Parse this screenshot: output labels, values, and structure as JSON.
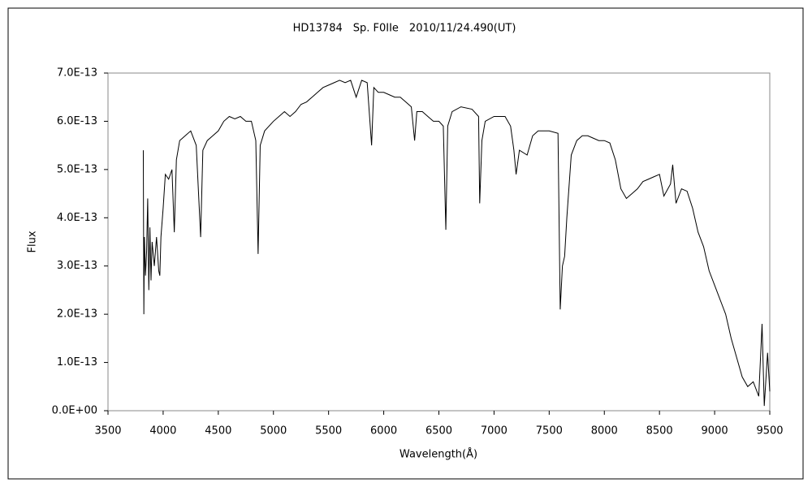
{
  "chart_data": {
    "type": "line",
    "title": "HD13784　Sp. F0IIe　2010/11/24.490(UT)",
    "x_label": "Wavelength(Å)",
    "y_label": "Flux",
    "color": "#000000",
    "x": [
      3820,
      3825,
      3830,
      3840,
      3850,
      3860,
      3870,
      3880,
      3890,
      3900,
      3920,
      3940,
      3960,
      3970,
      3980,
      4000,
      4020,
      4050,
      4080,
      4101,
      4120,
      4150,
      4200,
      4250,
      4300,
      4340,
      4360,
      4400,
      4450,
      4500,
      4550,
      4600,
      4650,
      4700,
      4750,
      4800,
      4840,
      4861,
      4880,
      4920,
      5000,
      5050,
      5100,
      5150,
      5200,
      5250,
      5300,
      5350,
      5400,
      5450,
      5500,
      5550,
      5600,
      5650,
      5700,
      5750,
      5800,
      5850,
      5890,
      5910,
      5950,
      6000,
      6050,
      6100,
      6150,
      6200,
      6250,
      6280,
      6300,
      6350,
      6400,
      6450,
      6500,
      6540,
      6563,
      6580,
      6620,
      6700,
      6800,
      6860,
      6870,
      6890,
      6920,
      7000,
      7100,
      7150,
      7180,
      7200,
      7230,
      7300,
      7350,
      7400,
      7500,
      7580,
      7600,
      7620,
      7640,
      7660,
      7700,
      7750,
      7800,
      7850,
      7900,
      7950,
      8000,
      8050,
      8100,
      8150,
      8200,
      8250,
      8300,
      8350,
      8400,
      8450,
      8500,
      8540,
      8600,
      8620,
      8650,
      8700,
      8750,
      8800,
      8850,
      8900,
      8950,
      9000,
      9050,
      9100,
      9150,
      9200,
      9250,
      9300,
      9350,
      9400,
      9430,
      9450,
      9480,
      9500
    ],
    "values": [
      5.4e-13,
      2e-13,
      3.6e-13,
      2.8e-13,
      3.3e-13,
      4.4e-13,
      2.5e-13,
      3.8e-13,
      2.7e-13,
      3.5e-13,
      3e-13,
      3.6e-13,
      2.9e-13,
      2.8e-13,
      3.6e-13,
      4.2e-13,
      4.9e-13,
      4.8e-13,
      5e-13,
      3.7e-13,
      5.2e-13,
      5.6e-13,
      5.7e-13,
      5.8e-13,
      5.5e-13,
      3.6e-13,
      5.4e-13,
      5.6e-13,
      5.7e-13,
      5.8e-13,
      6e-13,
      6.1e-13,
      6.05e-13,
      6.1e-13,
      6e-13,
      6e-13,
      5.6e-13,
      3.25e-13,
      5.5e-13,
      5.8e-13,
      6e-13,
      6.1e-13,
      6.2e-13,
      6.1e-13,
      6.2e-13,
      6.35e-13,
      6.4e-13,
      6.5e-13,
      6.6e-13,
      6.7e-13,
      6.75e-13,
      6.8e-13,
      6.85e-13,
      6.8e-13,
      6.85e-13,
      6.5e-13,
      6.85e-13,
      6.8e-13,
      5.5e-13,
      6.7e-13,
      6.6e-13,
      6.6e-13,
      6.55e-13,
      6.5e-13,
      6.5e-13,
      6.4e-13,
      6.3e-13,
      5.6e-13,
      6.2e-13,
      6.2e-13,
      6.1e-13,
      6e-13,
      6e-13,
      5.9e-13,
      3.75e-13,
      5.9e-13,
      6.2e-13,
      6.3e-13,
      6.25e-13,
      6.1e-13,
      4.3e-13,
      5.6e-13,
      6e-13,
      6.1e-13,
      6.1e-13,
      5.9e-13,
      5.4e-13,
      4.9e-13,
      5.4e-13,
      5.3e-13,
      5.7e-13,
      5.8e-13,
      5.8e-13,
      5.75e-13,
      2.1e-13,
      3e-13,
      3.2e-13,
      4e-13,
      5.3e-13,
      5.6e-13,
      5.7e-13,
      5.7e-13,
      5.65e-13,
      5.6e-13,
      5.6e-13,
      5.55e-13,
      5.2e-13,
      4.6e-13,
      4.4e-13,
      4.5e-13,
      4.6e-13,
      4.75e-13,
      4.8e-13,
      4.85e-13,
      4.9e-13,
      4.45e-13,
      4.7e-13,
      5.1e-13,
      4.3e-13,
      4.6e-13,
      4.55e-13,
      4.2e-13,
      3.7e-13,
      3.4e-13,
      2.9e-13,
      2.6e-13,
      2.3e-13,
      2e-13,
      1.5e-13,
      1.1e-13,
      7e-14,
      5e-14,
      6e-14,
      3e-14,
      1.8e-13,
      1e-14,
      1.2e-13,
      4e-14
    ],
    "xlim": [
      3500,
      9500
    ],
    "xticks": [
      3500,
      4000,
      4500,
      5000,
      5500,
      6000,
      6500,
      7000,
      7500,
      8000,
      8500,
      9000,
      9500
    ],
    "ylim": [
      0,
      7e-13
    ],
    "yticks": [
      {
        "value": 0,
        "label": "0.0E+00"
      },
      {
        "value": 1e-13,
        "label": "1.0E-13"
      },
      {
        "value": 2e-13,
        "label": "2.0E-13"
      },
      {
        "value": 3e-13,
        "label": "3.0E-13"
      },
      {
        "value": 4e-13,
        "label": "4.0E-13"
      },
      {
        "value": 5e-13,
        "label": "5.0E-13"
      },
      {
        "value": 6e-13,
        "label": "6.0E-13"
      },
      {
        "value": 7e-13,
        "label": "7.0E-13"
      }
    ]
  }
}
